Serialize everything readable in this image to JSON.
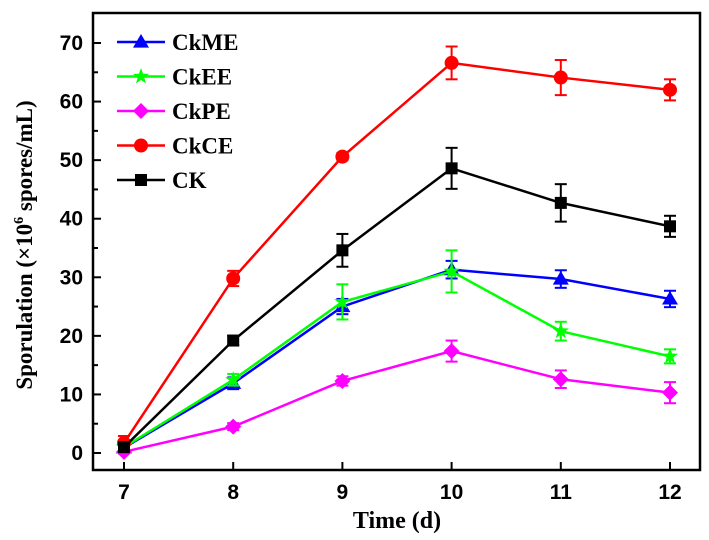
{
  "chart_data": {
    "type": "line",
    "xlabel": "Time (d)",
    "ylabel_prefix": "Sporulation (×10",
    "ylabel_sup": "6",
    "ylabel_suffix": " spores/mL)",
    "x": [
      7,
      8,
      9,
      10,
      11,
      12
    ],
    "xlim": [
      7,
      12
    ],
    "ylim": [
      0,
      70
    ],
    "xticks": [
      "7",
      "8",
      "9",
      "10",
      "11",
      "12"
    ],
    "yticks": [
      "0",
      "10",
      "20",
      "30",
      "40",
      "50",
      "60",
      "70"
    ],
    "legend_position": "top-left",
    "series": [
      {
        "name": "CkME",
        "color": "#0000ff",
        "marker": "triangle",
        "values": [
          0.9,
          11.9,
          25.0,
          31.3,
          29.7,
          26.3
        ],
        "errors": [
          0.5,
          1.0,
          1.3,
          1.5,
          1.5,
          1.4
        ]
      },
      {
        "name": "CkEE",
        "color": "#00ff00",
        "marker": "star",
        "values": [
          1.0,
          12.5,
          25.8,
          31.0,
          20.8,
          16.5
        ],
        "errors": [
          0.5,
          1.0,
          3.0,
          3.6,
          1.6,
          1.2
        ]
      },
      {
        "name": "CkPE",
        "color": "#ff00ff",
        "marker": "diamond",
        "values": [
          0.2,
          4.5,
          12.3,
          17.4,
          12.6,
          10.3
        ],
        "errors": [
          0.3,
          0.6,
          0.8,
          1.8,
          1.5,
          1.8
        ]
      },
      {
        "name": "CkCE",
        "color": "#ff0000",
        "marker": "circle",
        "values": [
          1.7,
          29.8,
          50.6,
          66.6,
          64.1,
          62.0
        ],
        "errors": [
          1.2,
          1.3,
          0.6,
          2.8,
          3.0,
          1.8
        ]
      },
      {
        "name": "CK",
        "color": "#000000",
        "marker": "square",
        "values": [
          1.0,
          19.2,
          34.6,
          48.6,
          42.7,
          38.7
        ],
        "errors": [
          0.8,
          0.8,
          2.8,
          3.5,
          3.2,
          1.8
        ]
      }
    ]
  }
}
